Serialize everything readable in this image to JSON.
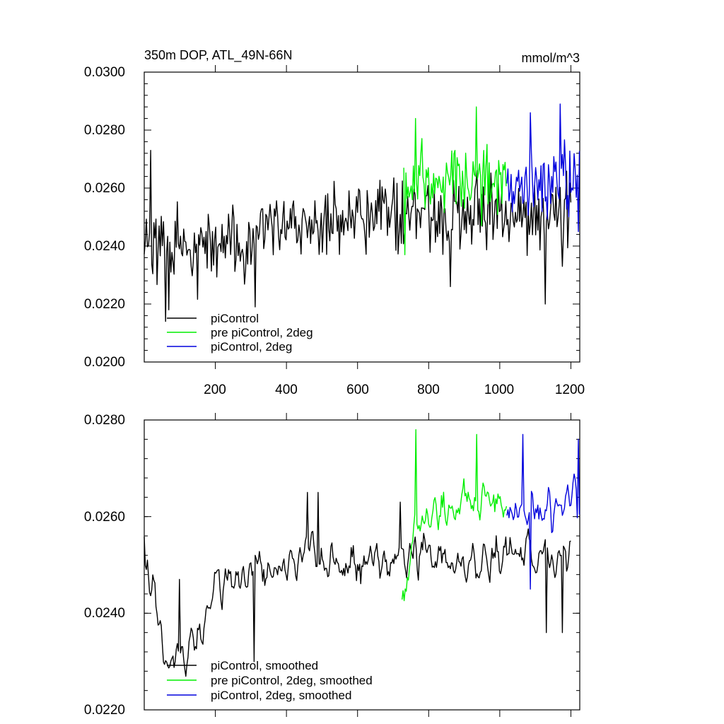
{
  "chart_data": [
    {
      "id": "top",
      "type": "line",
      "title": "350m DOP, ATL_49N-66N",
      "units": "mmol/m^3",
      "xlim": [
        0,
        1225
      ],
      "ylim": [
        0.02,
        0.03
      ],
      "x_ticks": [
        200,
        400,
        600,
        800,
        1000,
        1200
      ],
      "x_tick_labels": [
        "200",
        "400",
        "600",
        "800",
        "1000",
        "1200"
      ],
      "y_ticks": [
        0.02,
        0.022,
        0.024,
        0.026,
        0.028,
        0.03
      ],
      "y_tick_labels": [
        "0.0200",
        "0.0220",
        "0.0240",
        "0.0260",
        "0.0280",
        "0.0300"
      ],
      "legend_position": "bottom-left",
      "series": [
        {
          "name": "piControl",
          "color": "#000000",
          "x_start": 0,
          "x_end": 1200,
          "trend": [
            [
              0,
              0.024
            ],
            [
              150,
              0.0238
            ],
            [
              300,
              0.0243
            ],
            [
              450,
              0.0246
            ],
            [
              600,
              0.0251
            ],
            [
              750,
              0.0252
            ],
            [
              900,
              0.0251
            ],
            [
              1050,
              0.0252
            ],
            [
              1200,
              0.0252
            ]
          ],
          "noise": 0.0011,
          "spikes": [
            [
              18,
              0.0273
            ],
            [
              60,
              0.0214
            ],
            [
              70,
              0.0218
            ],
            [
              312,
              0.0219
            ],
            [
              860,
              0.0226
            ],
            [
              1128,
              0.022
            ],
            [
              1175,
              0.0233
            ]
          ]
        },
        {
          "name": "pre piControl, 2deg",
          "color": "#00ee00",
          "x_start": 730,
          "x_end": 1020,
          "trend": [
            [
              730,
              0.0254
            ],
            [
              760,
              0.0262
            ],
            [
              850,
              0.0263
            ],
            [
              940,
              0.0263
            ],
            [
              1020,
              0.0262
            ]
          ],
          "noise": 0.0011,
          "spikes": [
            [
              733,
              0.0237
            ],
            [
              762,
              0.0284
            ],
            [
              935,
              0.0288
            ]
          ]
        },
        {
          "name": "piControl, 2deg",
          "color": "#0000dd",
          "x_start": 1020,
          "x_end": 1225,
          "trend": [
            [
              1020,
              0.0258
            ],
            [
              1100,
              0.0262
            ],
            [
              1225,
              0.0264
            ]
          ],
          "noise": 0.0011,
          "spikes": [
            [
              1170,
              0.0289
            ],
            [
              1085,
              0.0286
            ],
            [
              1222,
              0.0245
            ]
          ]
        }
      ]
    },
    {
      "id": "bottom",
      "type": "line",
      "title": "",
      "xlim": [
        0,
        1225
      ],
      "ylim": [
        0.022,
        0.028
      ],
      "x_ticks": [
        200,
        400,
        600,
        800,
        1000,
        1200
      ],
      "y_ticks": [
        0.022,
        0.024,
        0.026,
        0.028
      ],
      "y_tick_labels": [
        "0.0220",
        "0.0240",
        "0.0260",
        "0.0280"
      ],
      "legend_position": "bottom-left",
      "series": [
        {
          "name": "piControl, smoothed",
          "color": "#000000",
          "x_start": 0,
          "x_end": 1200,
          "trend": [
            [
              0,
              0.0248
            ],
            [
              30,
              0.0246
            ],
            [
              45,
              0.0232
            ],
            [
              75,
              0.023
            ],
            [
              150,
              0.0235
            ],
            [
              170,
              0.0237
            ],
            [
              200,
              0.0246
            ],
            [
              300,
              0.0248
            ],
            [
              450,
              0.0252
            ],
            [
              600,
              0.025
            ],
            [
              750,
              0.0252
            ],
            [
              900,
              0.0249
            ],
            [
              1050,
              0.0253
            ],
            [
              1200,
              0.0252
            ]
          ],
          "noise": 0.0006,
          "spikes": [
            [
              10,
              0.0251
            ],
            [
              100,
              0.0247
            ],
            [
              310,
              0.023
            ],
            [
              460,
              0.0265
            ],
            [
              490,
              0.0265
            ],
            [
              720,
              0.0263
            ],
            [
              1130,
              0.0236
            ],
            [
              1175,
              0.0236
            ]
          ]
        },
        {
          "name": "pre piControl, 2deg, smoothed",
          "color": "#00ee00",
          "x_start": 725,
          "x_end": 1020,
          "trend": [
            [
              725,
              0.0241
            ],
            [
              760,
              0.0258
            ],
            [
              850,
              0.0262
            ],
            [
              940,
              0.0263
            ],
            [
              1020,
              0.0262
            ]
          ],
          "noise": 0.0006,
          "spikes": [
            [
              763,
              0.0278
            ],
            [
              935,
              0.0277
            ]
          ]
        },
        {
          "name": "piControl, 2deg, smoothed",
          "color": "#0000dd",
          "x_start": 1020,
          "x_end": 1225,
          "trend": [
            [
              1020,
              0.0259
            ],
            [
              1100,
              0.0262
            ],
            [
              1225,
              0.0264
            ]
          ],
          "noise": 0.0006,
          "spikes": [
            [
              1065,
              0.0277
            ],
            [
              1220,
              0.0276
            ],
            [
              1085,
              0.0245
            ]
          ]
        }
      ]
    }
  ]
}
